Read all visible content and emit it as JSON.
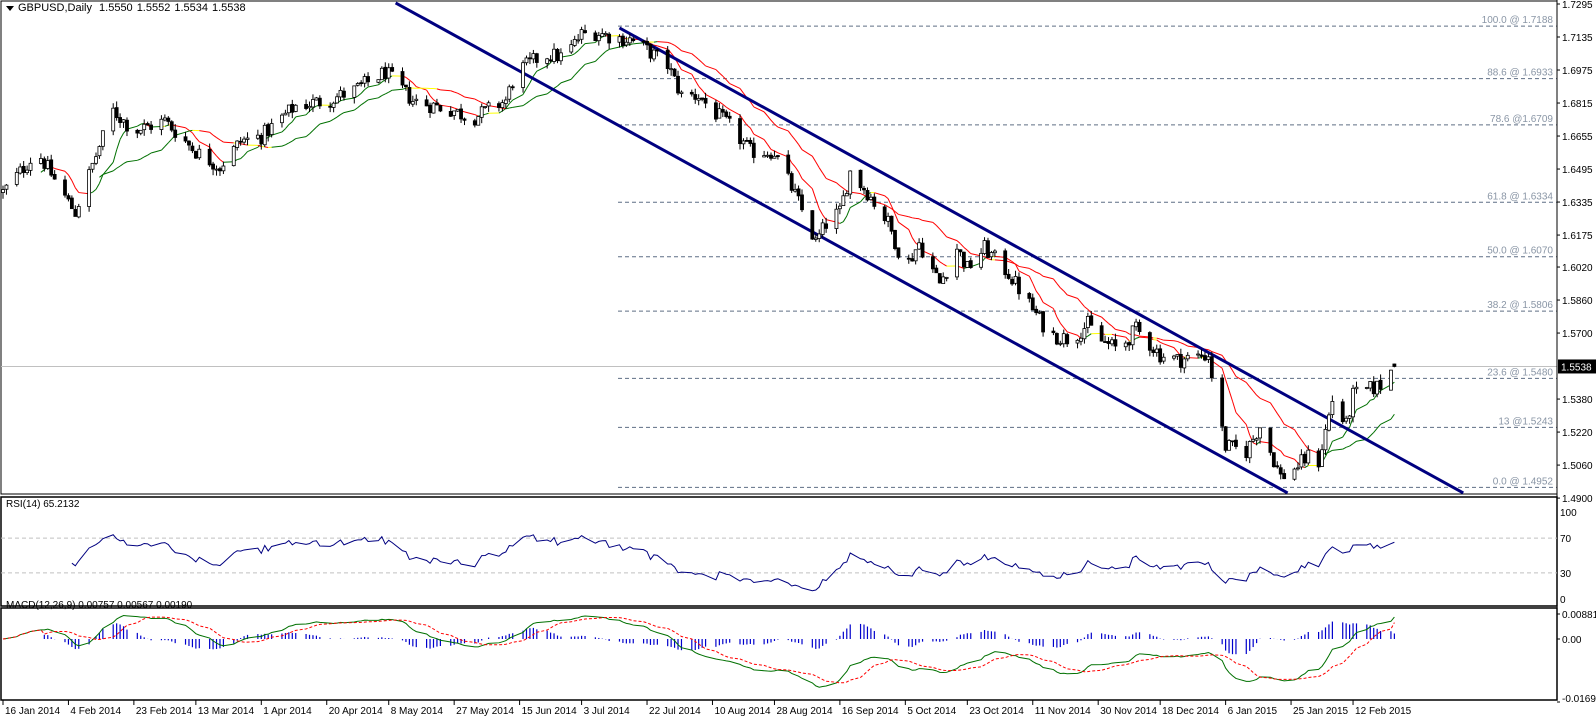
{
  "header": {
    "menu_icon": "triangle-down-icon",
    "symbol": "GBPUSD,Daily",
    "open": "1.5550",
    "high": "1.5552",
    "low": "1.5534",
    "close": "1.5538"
  },
  "colors": {
    "candle_bear": "#000000",
    "candle_bull": "#ffffff",
    "channel": "#000080",
    "ma_up": "#007000",
    "ma_down": "#ff0000",
    "ma_flat": "#ffff00",
    "fib_line": "#5f6f85",
    "fib_text": "#8a96a6",
    "rsi_line": "#000080",
    "macd_line": "#007000",
    "signal_line": "#ff0000",
    "histogram": "#0000cc",
    "current_price_line": "#c0c0c0"
  },
  "chart_data": [
    {
      "type": "candlestick",
      "title": "GBPUSD,Daily",
      "ylim": [
        1.49,
        1.7295
      ],
      "y_ticks": [
        "1.7295",
        "1.7135",
        "1.6975",
        "1.6815",
        "1.6655",
        "1.6495",
        "1.6335",
        "1.6175",
        "1.6020",
        "1.5860",
        "1.5700",
        "1.5380",
        "1.5220",
        "1.5060",
        "1.4900"
      ],
      "current_price": "1.5538",
      "last_bar": {
        "open": 1.555,
        "high": 1.5552,
        "low": 1.5534,
        "close": 1.5538
      },
      "x_ticks": [
        {
          "date": "2014-01-16",
          "label": "16 Jan 2014"
        },
        {
          "date": "2014-02-04",
          "label": "4 Feb 2014"
        },
        {
          "date": "2014-02-23",
          "label": "23 Feb 2014"
        },
        {
          "date": "2014-03-13",
          "label": "13 Mar 2014"
        },
        {
          "date": "2014-04-01",
          "label": "1 Apr 2014"
        },
        {
          "date": "2014-04-20",
          "label": "20 Apr 2014"
        },
        {
          "date": "2014-05-08",
          "label": "8 May 2014"
        },
        {
          "date": "2014-05-27",
          "label": "27 May 2014"
        },
        {
          "date": "2014-06-15",
          "label": "15 Jun 2014"
        },
        {
          "date": "2014-07-03",
          "label": "3 Jul 2014"
        },
        {
          "date": "2014-07-22",
          "label": "22 Jul 2014"
        },
        {
          "date": "2014-08-10",
          "label": "10 Aug 2014"
        },
        {
          "date": "2014-08-28",
          "label": "28 Aug 2014"
        },
        {
          "date": "2014-09-16",
          "label": "16 Sep 2014"
        },
        {
          "date": "2014-10-05",
          "label": "5 Oct 2014"
        },
        {
          "date": "2014-10-23",
          "label": "23 Oct 2014"
        },
        {
          "date": "2014-11-11",
          "label": "11 Nov 2014"
        },
        {
          "date": "2014-11-30",
          "label": "30 Nov 2014"
        },
        {
          "date": "2014-12-18",
          "label": "18 Dec 2014"
        },
        {
          "date": "2015-01-06",
          "label": "6 Jan 2015"
        },
        {
          "date": "2015-01-25",
          "label": "25 Jan 2015"
        },
        {
          "date": "2015-02-12",
          "label": "12 Feb 2015"
        }
      ],
      "close_anchors": [
        [
          "2014-01-16",
          1.6383
        ],
        [
          "2014-01-26",
          1.658
        ],
        [
          "2014-02-04",
          1.6334
        ],
        [
          "2014-02-06",
          1.6285
        ],
        [
          "2014-02-13",
          1.6605
        ],
        [
          "2014-02-17",
          1.6778
        ],
        [
          "2014-02-23",
          1.6679
        ],
        [
          "2014-03-04",
          1.6728
        ],
        [
          "2014-03-13",
          1.658
        ],
        [
          "2014-03-20",
          1.6506
        ],
        [
          "2014-03-26",
          1.663
        ],
        [
          "2014-04-01",
          1.6654
        ],
        [
          "2014-04-11",
          1.6802
        ],
        [
          "2014-04-20",
          1.6827
        ],
        [
          "2014-04-28",
          1.6876
        ],
        [
          "2014-05-07",
          1.6965
        ],
        [
          "2014-05-15",
          1.6827
        ],
        [
          "2014-05-27",
          1.6778
        ],
        [
          "2014-06-01",
          1.6738
        ],
        [
          "2014-06-11",
          1.6827
        ],
        [
          "2014-06-14",
          1.6965
        ],
        [
          "2014-06-22",
          1.7049
        ],
        [
          "2014-06-28",
          1.7039
        ],
        [
          "2014-07-03",
          1.7147
        ],
        [
          "2014-07-07",
          1.7157
        ],
        [
          "2014-07-13",
          1.7132
        ],
        [
          "2014-07-17",
          1.7123
        ],
        [
          "2014-07-22",
          1.7073
        ],
        [
          "2014-07-28",
          1.6999
        ],
        [
          "2014-08-01",
          1.6851
        ],
        [
          "2014-08-06",
          1.6851
        ],
        [
          "2014-08-10",
          1.6778
        ],
        [
          "2014-08-15",
          1.6704
        ],
        [
          "2014-08-21",
          1.658
        ],
        [
          "2014-08-28",
          1.658
        ],
        [
          "2014-09-04",
          1.6334
        ],
        [
          "2014-09-09",
          1.6137
        ],
        [
          "2014-09-13",
          1.626
        ],
        [
          "2014-09-16",
          1.6285
        ],
        [
          "2014-09-19",
          1.6482
        ],
        [
          "2014-09-24",
          1.6383
        ],
        [
          "2014-09-30",
          1.6235
        ],
        [
          "2014-10-05",
          1.6014
        ],
        [
          "2014-10-09",
          1.6137
        ],
        [
          "2014-10-15",
          1.594
        ],
        [
          "2014-10-20",
          1.6112
        ],
        [
          "2014-10-23",
          1.6014
        ],
        [
          "2014-10-28",
          1.6112
        ],
        [
          "2014-11-04",
          1.5989
        ],
        [
          "2014-11-11",
          1.5816
        ],
        [
          "2014-11-16",
          1.5693
        ],
        [
          "2014-11-22",
          1.5669
        ],
        [
          "2014-11-27",
          1.5743
        ],
        [
          "2014-11-30",
          1.5669
        ],
        [
          "2014-12-06",
          1.5619
        ],
        [
          "2014-12-11",
          1.5718
        ],
        [
          "2014-12-18",
          1.5595
        ],
        [
          "2014-12-23",
          1.557
        ],
        [
          "2015-01-01",
          1.5595
        ],
        [
          "2015-01-04",
          1.5299
        ],
        [
          "2015-01-06",
          1.5151
        ],
        [
          "2015-01-12",
          1.5127
        ],
        [
          "2015-01-16",
          1.525
        ],
        [
          "2015-01-22",
          1.5003
        ],
        [
          "2015-01-25",
          1.5028
        ],
        [
          "2015-01-30",
          1.5102
        ],
        [
          "2015-02-01",
          1.5003
        ],
        [
          "2015-02-06",
          1.5373
        ],
        [
          "2015-02-10",
          1.525
        ],
        [
          "2015-02-12",
          1.5398
        ],
        [
          "2015-02-16",
          1.5422
        ],
        [
          "2015-02-20",
          1.5447
        ],
        [
          "2015-02-22",
          1.5496
        ],
        [
          "2015-02-24",
          1.5538
        ]
      ],
      "fibonacci": [
        {
          "label": "100.0 @ 1.7188",
          "value": 1.7188
        },
        {
          "label": "88.6 @ 1.6933",
          "value": 1.6933
        },
        {
          "label": "78.6 @1.6709",
          "value": 1.6709
        },
        {
          "label": "61.8 @ 1.6334",
          "value": 1.6334
        },
        {
          "label": "50.0 @ 1.6070",
          "value": 1.607
        },
        {
          "label": "38.2 @ 1.5806",
          "value": 1.5806
        },
        {
          "label": "23.6 @ 1.5480",
          "value": 1.548
        },
        {
          "label": "13 @1.5243",
          "value": 1.5243
        },
        {
          "label": "0.0 @ 1.4952",
          "value": 1.4952
        }
      ],
      "channel": [
        {
          "name": "upper",
          "from": [
            "2014-07-14",
            1.7179
          ],
          "to": [
            "2015-03-16",
            1.4925
          ]
        },
        {
          "name": "lower",
          "from": [
            "2014-05-10",
            1.73
          ],
          "to": [
            "2015-01-24",
            1.4925
          ]
        }
      ]
    },
    {
      "type": "line",
      "title": "RSI(14) 65.2132",
      "ylim": [
        0,
        100
      ],
      "y_ticks": [
        "100",
        "70",
        "30",
        "0"
      ],
      "levels": [
        70,
        30
      ],
      "last_value": 65.2132
    },
    {
      "type": "macd",
      "title": "MACD(12,26,9) 0.00757 0.00567 0.00190",
      "y_ticks": [
        "0.00881",
        "0.00",
        "-0.01694"
      ],
      "last": {
        "macd": 0.00757,
        "signal": 0.00567,
        "histogram": 0.0019
      }
    }
  ]
}
